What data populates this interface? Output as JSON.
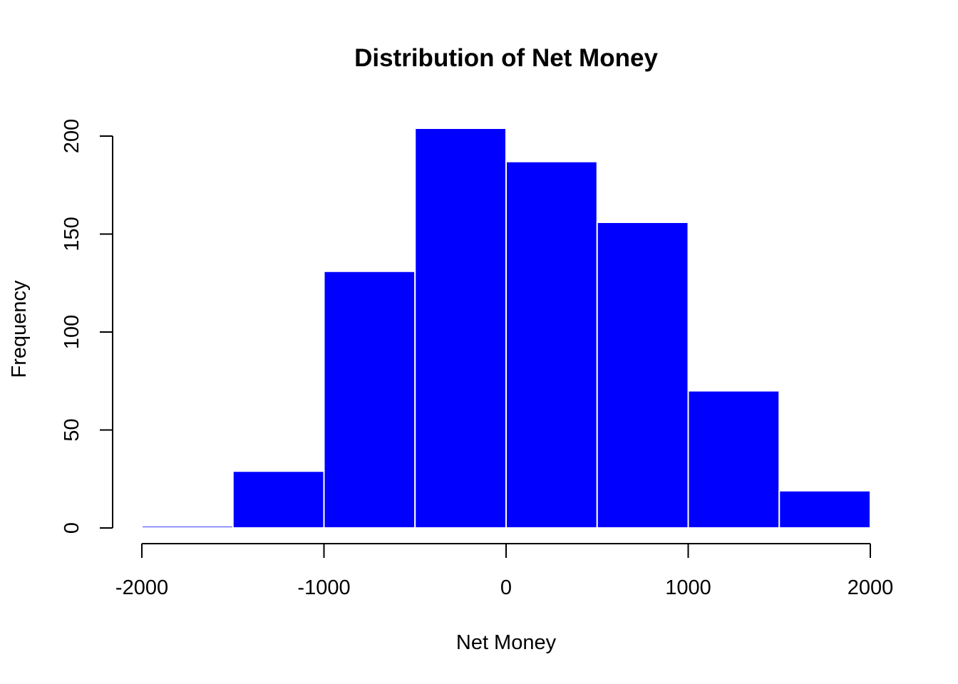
{
  "chart_data": {
    "type": "bar",
    "title": "Distribution of Net Money",
    "xlabel": "Net Money",
    "ylabel": "Frequency",
    "bin_edges": [
      -2000,
      -1500,
      -1000,
      -500,
      0,
      500,
      1000,
      1500,
      2000
    ],
    "values": [
      1,
      29,
      131,
      204,
      187,
      156,
      70,
      19
    ],
    "xlim": [
      -2000,
      2000
    ],
    "ylim": [
      0,
      204
    ],
    "x_ticks": [
      -2000,
      -1000,
      0,
      1000,
      2000
    ],
    "y_ticks": [
      0,
      50,
      100,
      150,
      200
    ],
    "bar_color": "#0000ff",
    "bar_border_color": "#ffffff",
    "grid": false,
    "legend": "none"
  }
}
